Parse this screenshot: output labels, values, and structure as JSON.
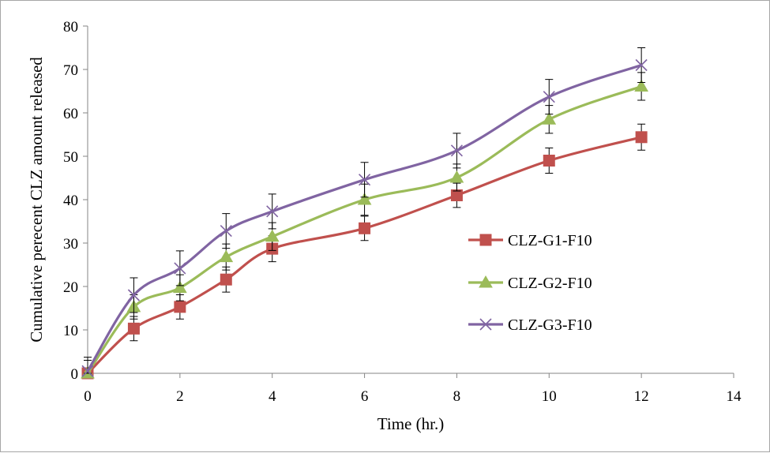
{
  "chart_data": {
    "type": "line",
    "title": "",
    "xlabel": "Time (hr.)",
    "ylabel": "Cumulative perecent CLZ amount released",
    "xlim": [
      0,
      14
    ],
    "ylim": [
      0,
      80
    ],
    "xticks": [
      0,
      2,
      4,
      6,
      8,
      10,
      12,
      14
    ],
    "yticks": [
      0,
      10,
      20,
      30,
      40,
      50,
      60,
      70,
      80
    ],
    "x": [
      0,
      1,
      2,
      3,
      4,
      6,
      8,
      10,
      12
    ],
    "legend_position": "right",
    "series": [
      {
        "name": "CLZ-G1-F10",
        "color": "#c0504d",
        "marker": "square",
        "values": [
          0,
          10.3,
          15.3,
          21.6,
          28.7,
          33.4,
          41.0,
          49.0,
          54.4
        ],
        "errors": [
          3.0,
          2.8,
          2.8,
          2.9,
          3.0,
          2.8,
          2.8,
          2.9,
          3.0
        ]
      },
      {
        "name": "CLZ-G2-F10",
        "color": "#9bbb59",
        "marker": "triangle",
        "values": [
          0,
          15.3,
          19.7,
          26.8,
          31.5,
          40.0,
          45.1,
          58.5,
          66.1
        ],
        "errors": [
          3.0,
          2.8,
          3.0,
          3.0,
          3.2,
          3.6,
          3.1,
          3.2,
          3.2
        ]
      },
      {
        "name": "CLZ-G3-F10",
        "color": "#8064a2",
        "marker": "x",
        "values": [
          0.5,
          18.0,
          24.2,
          32.8,
          37.3,
          44.6,
          51.3,
          63.7,
          71.0
        ],
        "errors": [
          3.2,
          4.0,
          4.0,
          4.0,
          4.0,
          4.0,
          4.0,
          4.0,
          4.0
        ]
      }
    ]
  }
}
